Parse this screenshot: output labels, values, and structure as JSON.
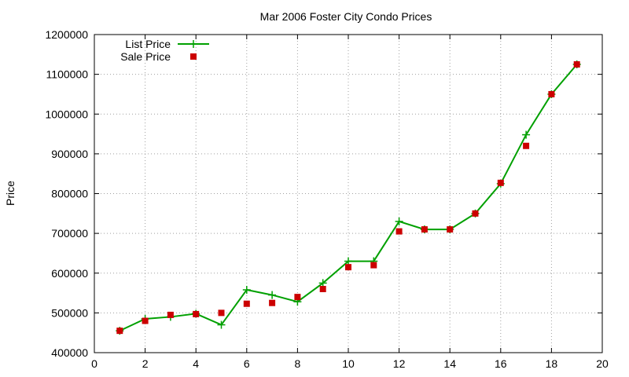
{
  "chart_data": {
    "type": "line",
    "title": "Mar 2006 Foster City Condo Prices",
    "xlabel": "",
    "ylabel": "Price",
    "xlim": [
      0,
      20
    ],
    "ylim": [
      400000,
      1200000
    ],
    "xticks": [
      "0",
      "2",
      "4",
      "6",
      "8",
      "10",
      "12",
      "14",
      "16",
      "18",
      "20"
    ],
    "yticks": [
      "400000",
      "500000",
      "600000",
      "700000",
      "800000",
      "900000",
      "1000000",
      "1100000",
      "1200000"
    ],
    "grid": true,
    "legend_position": "top-left",
    "series": [
      {
        "name": "List Price",
        "style": "line-with-plus-markers",
        "color": "#00a000",
        "x": [
          1,
          2,
          3,
          4,
          5,
          6,
          7,
          8,
          9,
          10,
          11,
          12,
          13,
          14,
          15,
          16,
          17,
          18,
          19
        ],
        "y": [
          455000,
          485000,
          490000,
          498000,
          470000,
          558000,
          545000,
          528000,
          575000,
          630000,
          630000,
          730000,
          710000,
          710000,
          750000,
          825000,
          948000,
          1050000,
          1125000
        ]
      },
      {
        "name": "Sale Price",
        "style": "square-markers",
        "color": "#cc0000",
        "x": [
          1,
          2,
          3,
          4,
          5,
          6,
          7,
          8,
          9,
          10,
          11,
          12,
          13,
          14,
          15,
          16,
          17,
          18,
          19
        ],
        "y": [
          455000,
          480000,
          495000,
          497000,
          500000,
          523000,
          525000,
          540000,
          560000,
          615000,
          620000,
          705000,
          710000,
          710000,
          750000,
          827000,
          920000,
          1050000,
          1125000
        ]
      }
    ]
  }
}
